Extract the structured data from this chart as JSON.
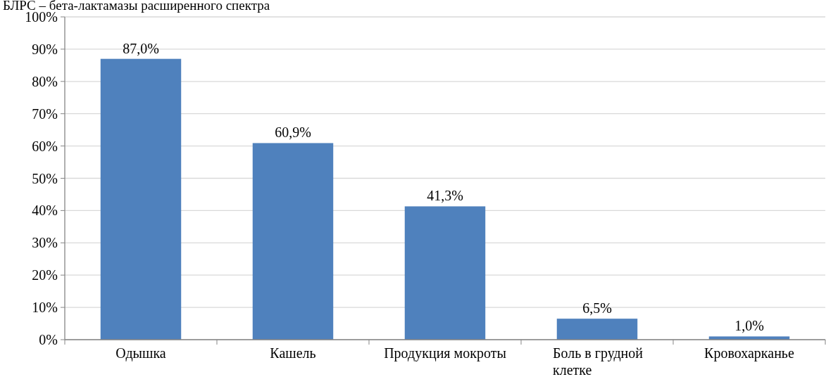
{
  "chart_data": {
    "type": "bar",
    "annotations": [
      "БЛРС – бета-лактамазы расширенного спектра"
    ],
    "categories": [
      "Одышка",
      "Кашель",
      "Продукция мокроты",
      "Боль в грудной клетке",
      "Кровохарканье"
    ],
    "values": [
      87.0,
      60.9,
      41.3,
      6.5,
      1.0
    ],
    "value_labels": [
      "87,0%",
      "60,9%",
      "41,3%",
      "6,5%",
      "1,0%"
    ],
    "color": "#4f81bd",
    "ylim": [
      0,
      100
    ],
    "yticks": [
      {
        "value": 0,
        "label": "0%"
      },
      {
        "value": 10,
        "label": "10%"
      },
      {
        "value": 20,
        "label": "20%"
      },
      {
        "value": 30,
        "label": "30%"
      },
      {
        "value": 40,
        "label": "40%"
      },
      {
        "value": 50,
        "label": "50%"
      },
      {
        "value": 60,
        "label": "60%"
      },
      {
        "value": 70,
        "label": "70%"
      },
      {
        "value": 80,
        "label": "80%"
      },
      {
        "value": 90,
        "label": "90%"
      },
      {
        "value": 100,
        "label": "100%"
      }
    ],
    "grid": "y"
  }
}
